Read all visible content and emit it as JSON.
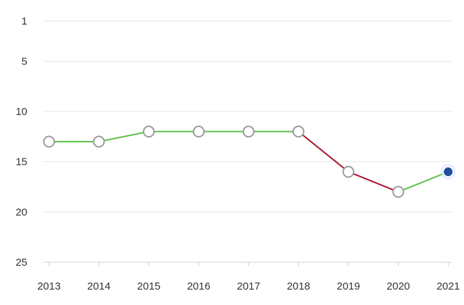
{
  "chart_data": {
    "type": "line",
    "x": [
      "2013",
      "2014",
      "2015",
      "2016",
      "2017",
      "2018",
      "2019",
      "2020",
      "2021"
    ],
    "values": [
      13,
      13,
      12,
      12,
      12,
      12,
      16,
      18,
      16
    ],
    "y_ticks": [
      1,
      5,
      10,
      15,
      20,
      25
    ],
    "ylim": [
      1,
      25
    ],
    "y_reversed": true,
    "grid": true,
    "legend": "none",
    "colors": {
      "improve": "#5cc04a",
      "decline": "#a8102a",
      "marker_fill": "#ffffff",
      "marker_stroke": "#9b9b9b",
      "latest_fill": "#1f4e99",
      "latest_glow": "#cfe0f7"
    }
  }
}
